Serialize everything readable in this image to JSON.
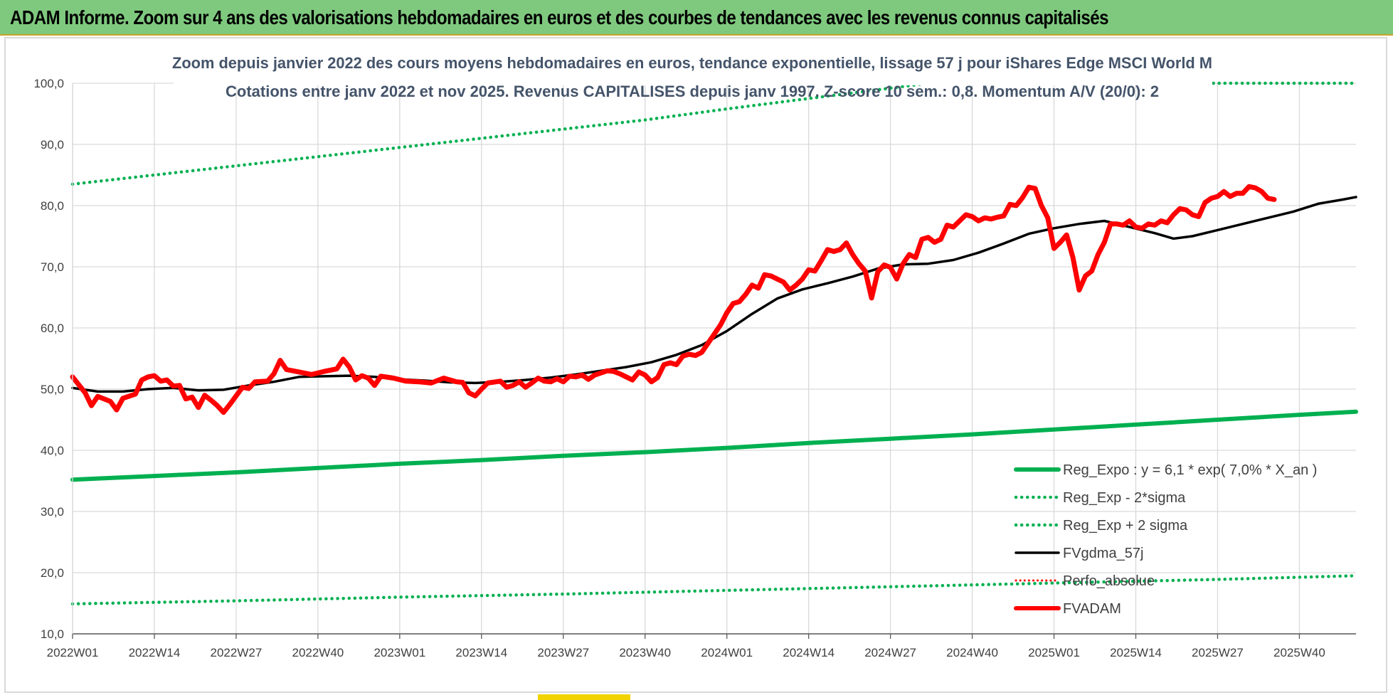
{
  "header": {
    "title": "ADAM Informe. Zoom sur 4 ans des valorisations hebdomadaires en euros et des courbes de tendances avec les revenus connus capitalisés"
  },
  "colors": {
    "header_bg": "#7fc97f",
    "reg_expo": "#00b050",
    "fvgdma": "#000000",
    "fvadam": "#ff0000",
    "perfo": "#ff0000",
    "grid": "#d9d9d9"
  },
  "chart_data": {
    "type": "line",
    "title": "Zoom depuis janvier 2022 des cours moyens hebdomadaires en euros, tendance exponentielle, lissage 57 j pour iShares Edge MSCI World M",
    "subtitle": "Cotations entre janv 2022 et nov 2025. Revenus CAPITALISES depuis janv 1997. Z-score 10 sem.: 0,8. Momentum A/V (20/0): 2",
    "xlabel": "",
    "ylabel": "",
    "ylim": [
      10,
      100
    ],
    "y_ticks": [
      "100,0",
      "90,0",
      "80,0",
      "70,0",
      "60,0",
      "50,0",
      "40,0",
      "30,0",
      "20,0",
      "10,0"
    ],
    "x_ticks": [
      "2022W01",
      "2022W14",
      "2022W27",
      "2022W40",
      "2023W01",
      "2023W14",
      "2023W27",
      "2023W40",
      "2024W01",
      "2024W14",
      "2024W27",
      "2024W40",
      "2025W01",
      "2025W14",
      "2025W27",
      "2025W40"
    ],
    "x_range_weeks": [
      0,
      204
    ],
    "grid": true,
    "legend_position": "bottom-right",
    "series": [
      {
        "name": "Reg_Expo : y = 6,1 * exp( 7,0% *  X_an )",
        "style": "solid-thick",
        "values": [
          [
            0,
            35.2
          ],
          [
            13,
            35.8
          ],
          [
            26,
            36.4
          ],
          [
            39,
            37.1
          ],
          [
            52,
            37.8
          ],
          [
            65,
            38.4
          ],
          [
            78,
            39.1
          ],
          [
            91,
            39.7
          ],
          [
            104,
            40.4
          ],
          [
            117,
            41.2
          ],
          [
            130,
            41.9
          ],
          [
            143,
            42.6
          ],
          [
            156,
            43.4
          ],
          [
            169,
            44.2
          ],
          [
            182,
            45.0
          ],
          [
            195,
            45.8
          ],
          [
            204,
            46.3
          ]
        ]
      },
      {
        "name": "Reg_Exp - 2*sigma",
        "style": "dotted",
        "values": [
          [
            0,
            14.9
          ],
          [
            26,
            15.4
          ],
          [
            52,
            16.0
          ],
          [
            78,
            16.5
          ],
          [
            104,
            17.1
          ],
          [
            130,
            17.7
          ],
          [
            156,
            18.3
          ],
          [
            182,
            18.9
          ],
          [
            204,
            19.5
          ]
        ]
      },
      {
        "name": "Reg_Exp + 2 sigma",
        "style": "dotted",
        "values": [
          [
            0,
            83.5
          ],
          [
            13,
            85.0
          ],
          [
            26,
            86.5
          ],
          [
            39,
            88.0
          ],
          [
            52,
            89.5
          ],
          [
            65,
            91.0
          ],
          [
            78,
            92.5
          ],
          [
            91,
            94.0
          ],
          [
            104,
            95.8
          ],
          [
            117,
            97.5
          ],
          [
            130,
            99.2
          ],
          [
            136,
            100.0
          ],
          [
            204,
            100.0
          ]
        ]
      },
      {
        "name": "FVgdma_57j",
        "style": "solid",
        "values": [
          [
            0,
            50.2
          ],
          [
            4,
            49.6
          ],
          [
            8,
            49.6
          ],
          [
            12,
            50.0
          ],
          [
            16,
            50.2
          ],
          [
            20,
            49.8
          ],
          [
            24,
            49.9
          ],
          [
            28,
            50.6
          ],
          [
            32,
            51.2
          ],
          [
            36,
            52.0
          ],
          [
            40,
            52.1
          ],
          [
            44,
            52.2
          ],
          [
            48,
            52.0
          ],
          [
            52,
            51.6
          ],
          [
            56,
            51.4
          ],
          [
            60,
            51.1
          ],
          [
            64,
            51.0
          ],
          [
            68,
            51.2
          ],
          [
            72,
            51.5
          ],
          [
            76,
            51.9
          ],
          [
            80,
            52.4
          ],
          [
            84,
            53.0
          ],
          [
            88,
            53.6
          ],
          [
            92,
            54.4
          ],
          [
            96,
            55.6
          ],
          [
            100,
            57.2
          ],
          [
            104,
            59.5
          ],
          [
            108,
            62.3
          ],
          [
            112,
            64.8
          ],
          [
            116,
            66.3
          ],
          [
            120,
            67.3
          ],
          [
            124,
            68.4
          ],
          [
            128,
            69.7
          ],
          [
            132,
            70.4
          ],
          [
            136,
            70.5
          ],
          [
            140,
            71.1
          ],
          [
            144,
            72.3
          ],
          [
            148,
            73.8
          ],
          [
            152,
            75.4
          ],
          [
            156,
            76.3
          ],
          [
            160,
            77.0
          ],
          [
            164,
            77.5
          ],
          [
            168,
            76.5
          ],
          [
            172,
            75.5
          ],
          [
            175,
            74.6
          ],
          [
            178,
            75.0
          ],
          [
            182,
            76.0
          ],
          [
            186,
            77.0
          ],
          [
            190,
            78.0
          ],
          [
            194,
            79.0
          ],
          [
            198,
            80.3
          ],
          [
            202,
            81.0
          ],
          [
            204,
            81.4
          ]
        ]
      },
      {
        "name": "Perfo_absolue",
        "style": "dotted",
        "values": []
      },
      {
        "name": "FVADAM",
        "style": "solid-thick",
        "values": [
          [
            0,
            52.0
          ],
          [
            2,
            49.4
          ],
          [
            3,
            47.3
          ],
          [
            4,
            48.8
          ],
          [
            6,
            48.0
          ],
          [
            7,
            46.6
          ],
          [
            8,
            48.5
          ],
          [
            10,
            49.2
          ],
          [
            11,
            51.5
          ],
          [
            12,
            52.0
          ],
          [
            13,
            52.2
          ],
          [
            14,
            51.3
          ],
          [
            15,
            51.5
          ],
          [
            16,
            50.5
          ],
          [
            17,
            50.6
          ],
          [
            18,
            48.4
          ],
          [
            19,
            48.7
          ],
          [
            20,
            47.0
          ],
          [
            21,
            49.0
          ],
          [
            22,
            48.2
          ],
          [
            23,
            47.3
          ],
          [
            24,
            46.2
          ],
          [
            25,
            47.5
          ],
          [
            27,
            50.3
          ],
          [
            28,
            50.1
          ],
          [
            29,
            51.2
          ],
          [
            31,
            51.3
          ],
          [
            32,
            52.5
          ],
          [
            33,
            54.7
          ],
          [
            34,
            53.2
          ],
          [
            36,
            52.8
          ],
          [
            38,
            52.4
          ],
          [
            40,
            52.9
          ],
          [
            42,
            53.3
          ],
          [
            43,
            54.9
          ],
          [
            44,
            53.6
          ],
          [
            45,
            51.5
          ],
          [
            46,
            52.2
          ],
          [
            47,
            51.8
          ],
          [
            48,
            50.6
          ],
          [
            49,
            52.1
          ],
          [
            51,
            51.8
          ],
          [
            53,
            51.3
          ],
          [
            55,
            51.2
          ],
          [
            57,
            51.0
          ],
          [
            59,
            51.8
          ],
          [
            61,
            51.2
          ],
          [
            62,
            51.1
          ],
          [
            63,
            49.4
          ],
          [
            64,
            48.9
          ],
          [
            65,
            50.0
          ],
          [
            66,
            51.0
          ],
          [
            68,
            51.3
          ],
          [
            69,
            50.3
          ],
          [
            70,
            50.6
          ],
          [
            71,
            51.2
          ],
          [
            72,
            50.3
          ],
          [
            73,
            51.0
          ],
          [
            74,
            51.8
          ],
          [
            75,
            51.3
          ],
          [
            76,
            51.2
          ],
          [
            77,
            51.7
          ],
          [
            78,
            51.2
          ],
          [
            79,
            52.1
          ],
          [
            80,
            52.0
          ],
          [
            81,
            52.3
          ],
          [
            82,
            51.6
          ],
          [
            83,
            52.3
          ],
          [
            85,
            53.0
          ],
          [
            86,
            52.9
          ],
          [
            87,
            52.5
          ],
          [
            88,
            52.0
          ],
          [
            89,
            51.5
          ],
          [
            90,
            52.8
          ],
          [
            91,
            52.3
          ],
          [
            92,
            51.2
          ],
          [
            93,
            51.9
          ],
          [
            94,
            54.0
          ],
          [
            95,
            54.3
          ],
          [
            96,
            54.0
          ],
          [
            97,
            55.4
          ],
          [
            98,
            55.7
          ],
          [
            99,
            55.5
          ],
          [
            100,
            56.0
          ],
          [
            101,
            57.5
          ],
          [
            102,
            59.0
          ],
          [
            103,
            60.5
          ],
          [
            104,
            62.5
          ],
          [
            105,
            64.0
          ],
          [
            106,
            64.3
          ],
          [
            107,
            65.5
          ],
          [
            108,
            67.0
          ],
          [
            109,
            66.5
          ],
          [
            110,
            68.7
          ],
          [
            111,
            68.5
          ],
          [
            112,
            68.0
          ],
          [
            113,
            67.5
          ],
          [
            114,
            66.2
          ],
          [
            115,
            67.0
          ],
          [
            116,
            68.0
          ],
          [
            117,
            69.5
          ],
          [
            118,
            69.3
          ],
          [
            119,
            71.0
          ],
          [
            120,
            72.8
          ],
          [
            121,
            72.5
          ],
          [
            122,
            72.8
          ],
          [
            123,
            73.9
          ],
          [
            124,
            72.0
          ],
          [
            125,
            70.5
          ],
          [
            126,
            69.3
          ],
          [
            127,
            64.9
          ],
          [
            128,
            69.2
          ],
          [
            129,
            70.3
          ],
          [
            130,
            69.9
          ],
          [
            131,
            68.0
          ],
          [
            132,
            70.5
          ],
          [
            133,
            72.0
          ],
          [
            134,
            71.5
          ],
          [
            135,
            74.5
          ],
          [
            136,
            74.8
          ],
          [
            137,
            74.0
          ],
          [
            138,
            74.5
          ],
          [
            139,
            76.8
          ],
          [
            140,
            76.5
          ],
          [
            141,
            77.5
          ],
          [
            142,
            78.5
          ],
          [
            143,
            78.2
          ],
          [
            144,
            77.5
          ],
          [
            145,
            78.0
          ],
          [
            146,
            77.8
          ],
          [
            147,
            78.1
          ],
          [
            148,
            78.3
          ],
          [
            149,
            80.2
          ],
          [
            150,
            80.0
          ],
          [
            151,
            81.3
          ],
          [
            152,
            83.0
          ],
          [
            153,
            82.8
          ],
          [
            154,
            80.0
          ],
          [
            155,
            78.0
          ],
          [
            156,
            73.0
          ],
          [
            157,
            74.0
          ],
          [
            158,
            75.2
          ],
          [
            159,
            71.5
          ],
          [
            160,
            66.2
          ],
          [
            161,
            68.5
          ],
          [
            162,
            69.3
          ],
          [
            163,
            72.0
          ],
          [
            164,
            74.0
          ],
          [
            165,
            77.0
          ],
          [
            166,
            77.0
          ],
          [
            167,
            76.8
          ],
          [
            168,
            77.5
          ],
          [
            169,
            76.5
          ],
          [
            170,
            76.3
          ],
          [
            171,
            77.0
          ],
          [
            172,
            76.8
          ],
          [
            173,
            77.5
          ],
          [
            174,
            77.2
          ],
          [
            175,
            78.5
          ],
          [
            176,
            79.5
          ],
          [
            177,
            79.3
          ],
          [
            178,
            78.5
          ],
          [
            179,
            78.2
          ],
          [
            180,
            80.5
          ],
          [
            181,
            81.2
          ],
          [
            182,
            81.5
          ],
          [
            183,
            82.3
          ],
          [
            184,
            81.5
          ],
          [
            185,
            82.0
          ],
          [
            186,
            82.0
          ],
          [
            187,
            83.1
          ],
          [
            188,
            82.9
          ],
          [
            189,
            82.3
          ],
          [
            190,
            81.2
          ],
          [
            191,
            81.0
          ]
        ]
      }
    ]
  }
}
